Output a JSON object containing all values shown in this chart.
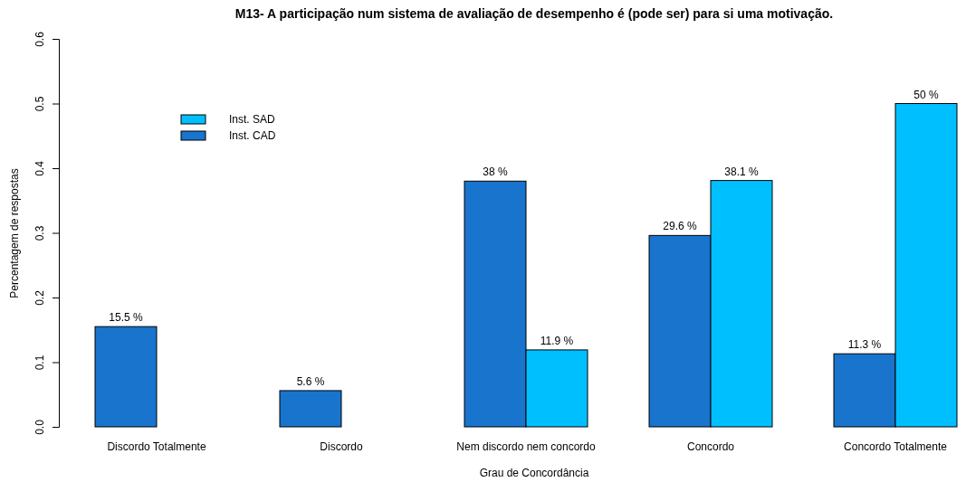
{
  "chart_data": {
    "type": "bar",
    "title": "M13- A participação num sistema de avaliação de desempenho é (pode ser) para si uma motivação.",
    "xlabel": "Grau de Concordância",
    "ylabel": "Percentagem de respostas",
    "categories": [
      "Discordo Totalmente",
      "Discordo",
      "Nem discordo nem concordo",
      "Concordo",
      "Concordo Totalmente"
    ],
    "series": [
      {
        "name": "Inst. CAD",
        "color": "#1874cd",
        "values": [
          0.155,
          0.056,
          0.38,
          0.296,
          0.113
        ],
        "value_labels": [
          "15.5 %",
          "5.6 %",
          "38 %",
          "29.6 %",
          "11.3 %"
        ]
      },
      {
        "name": "Inst. SAD",
        "color": "#00bfff",
        "values": [
          0,
          0,
          0.119,
          0.381,
          0.5
        ],
        "value_labels": [
          null,
          null,
          "11.9 %",
          "38.1 %",
          "50 %"
        ]
      }
    ],
    "ylim": [
      0,
      0.6
    ],
    "yticks": [
      {
        "value": 0,
        "label": "0.0"
      },
      0.1,
      0.2,
      0.3,
      0.4,
      0.5,
      0.6
    ],
    "legend": "top left",
    "grid": false
  }
}
